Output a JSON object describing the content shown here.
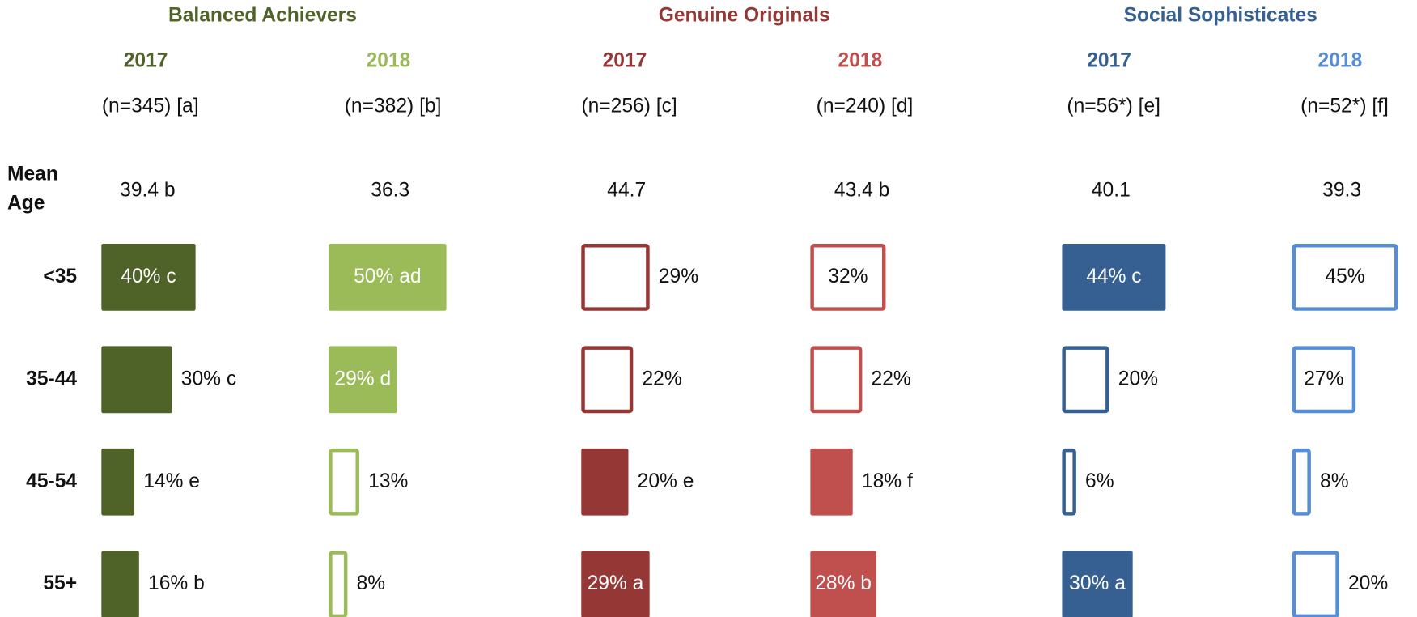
{
  "chart_data": {
    "type": "bar",
    "categories": [
      "<35",
      "35-44",
      "45-54",
      "55+"
    ],
    "mean_age_title": "Mean Age",
    "groups": [
      {
        "title": "Balanced Achievers",
        "color": "#4f6228",
        "series": [
          {
            "name": "2017",
            "n_label": "(n=345) [a]",
            "color": "#4f6228",
            "mean_age": 39.4,
            "mean_age_label": "39.4 b",
            "values": [
              40,
              30,
              14,
              16
            ],
            "value_labels": [
              "40% c",
              "30% c",
              "14% e",
              "16% b"
            ],
            "filled": [
              true,
              true,
              true,
              true
            ]
          },
          {
            "name": "2018",
            "n_label": "(n=382) [b]",
            "color": "#9bbb59",
            "mean_age": 36.3,
            "values": [
              50,
              29,
              13,
              8
            ],
            "value_labels": [
              "50% ad",
              "29% d",
              "13%",
              "8%"
            ],
            "filled": [
              true,
              true,
              false,
              false
            ]
          }
        ]
      },
      {
        "title": "Genuine Originals",
        "color": "#953735",
        "series": [
          {
            "name": "2017",
            "n_label": "(n=256) [c]",
            "color": "#953735",
            "mean_age": 44.7,
            "values": [
              29,
              22,
              20,
              29
            ],
            "value_labels": [
              "29%",
              "22%",
              "20% e",
              "29% a"
            ],
            "filled": [
              false,
              false,
              true,
              true
            ]
          },
          {
            "name": "2018",
            "n_label": "(n=240) [d]",
            "color": "#c0504d",
            "mean_age": 43.4,
            "mean_age_label": "43.4 b",
            "values": [
              32,
              22,
              18,
              28
            ],
            "value_labels": [
              "32%",
              "22%",
              "18% f",
              "28% b"
            ],
            "filled": [
              false,
              false,
              true,
              true
            ]
          }
        ]
      },
      {
        "title": "Social Sophisticates",
        "color": "#366092",
        "series": [
          {
            "name": "2017",
            "n_label": "(n=56*) [e]",
            "color": "#366092",
            "mean_age": 40.1,
            "values": [
              44,
              20,
              6,
              30
            ],
            "value_labels": [
              "44% c",
              "20%",
              "6%",
              "30% a"
            ],
            "filled": [
              true,
              false,
              false,
              true
            ]
          },
          {
            "name": "2018",
            "n_label": "(n=52*) [f]",
            "color": "#558ed5",
            "mean_age": 39.3,
            "values": [
              45,
              27,
              8,
              20
            ],
            "value_labels": [
              "45%",
              "27%",
              "8%",
              "20%"
            ],
            "filled": [
              false,
              false,
              false,
              false
            ]
          }
        ]
      }
    ]
  }
}
